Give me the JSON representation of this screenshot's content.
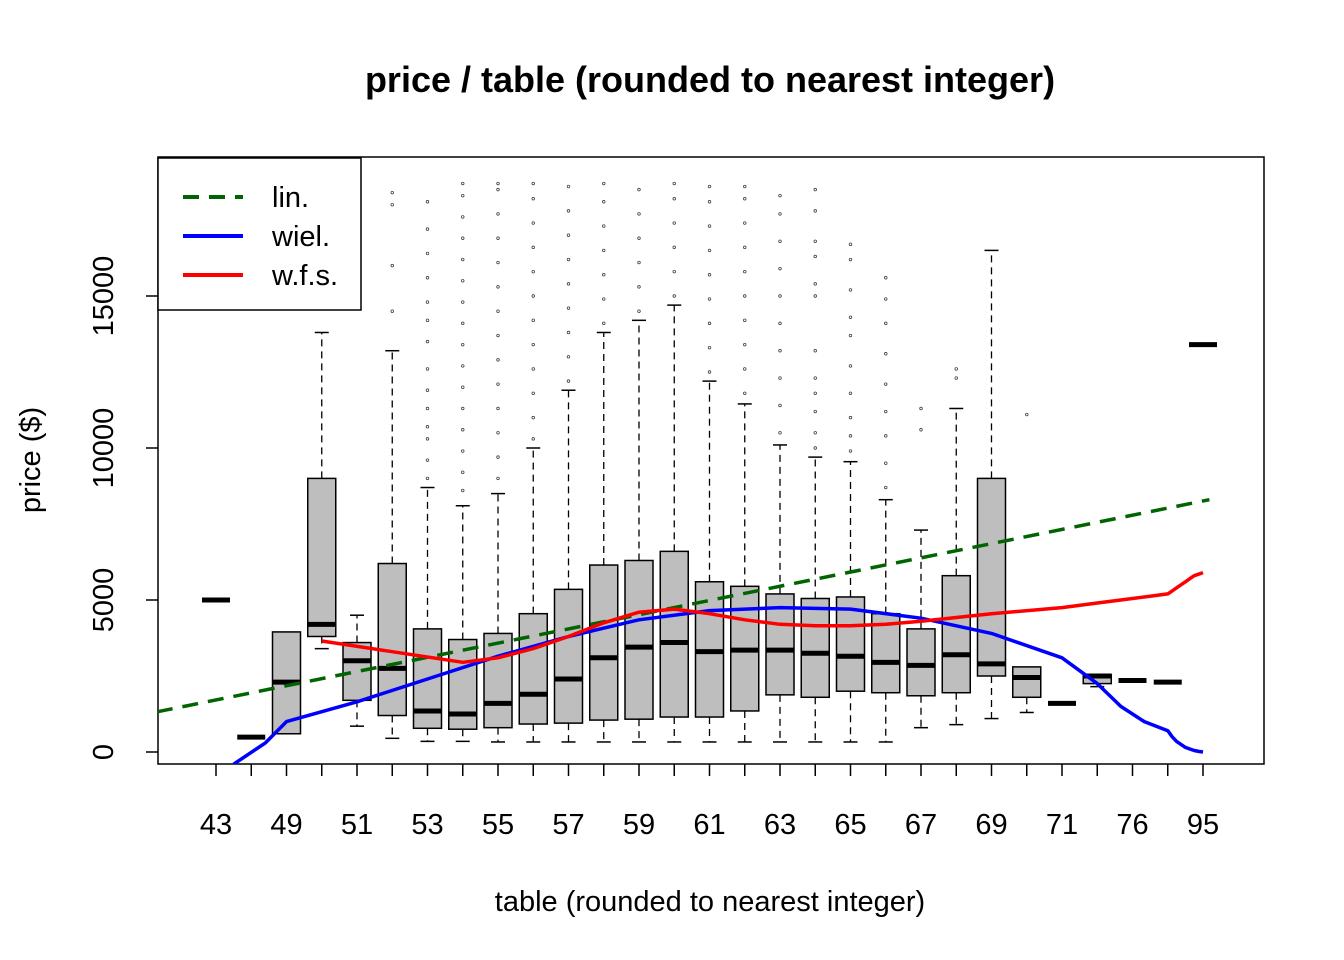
{
  "chart_data": {
    "type": "boxplot",
    "title": "price / table (rounded to nearest integer)",
    "xlabel": "table (rounded to nearest integer)",
    "ylabel": "price ($)",
    "ylim": [
      -400,
      19600
    ],
    "y_ticks": [
      0,
      5000,
      10000,
      15000
    ],
    "x_tick_labels": [
      "43",
      "49",
      "51",
      "53",
      "55",
      "57",
      "59",
      "61",
      "63",
      "65",
      "67",
      "69",
      "71",
      "76",
      "95"
    ],
    "categories": [
      "43",
      "44",
      "49",
      "50",
      "51",
      "52",
      "53",
      "54",
      "55",
      "56",
      "57",
      "58",
      "59",
      "60",
      "61",
      "62",
      "63",
      "64",
      "65",
      "66",
      "67",
      "68",
      "69",
      "70",
      "71",
      "73",
      "76",
      "79",
      "95"
    ],
    "boxes": [
      {
        "cat": "43",
        "min": 5000,
        "q1": 5000,
        "median": 5000,
        "q3": 5000,
        "max": 5000
      },
      {
        "cat": "44",
        "min": 490,
        "q1": 490,
        "median": 490,
        "q3": 490,
        "max": 490
      },
      {
        "cat": "49",
        "min": 600,
        "q1": 600,
        "median": 2300,
        "q3": 3950,
        "max": 3950
      },
      {
        "cat": "50",
        "min": 3400,
        "q1": 3800,
        "median": 4200,
        "q3": 9000,
        "max": 13800
      },
      {
        "cat": "51",
        "min": 850,
        "q1": 1700,
        "median": 3000,
        "q3": 3600,
        "max": 4500
      },
      {
        "cat": "52",
        "min": 450,
        "q1": 1200,
        "median": 2750,
        "q3": 6200,
        "max": 13200
      },
      {
        "cat": "53",
        "min": 350,
        "q1": 780,
        "median": 1350,
        "q3": 4050,
        "max": 8700
      },
      {
        "cat": "54",
        "min": 350,
        "q1": 750,
        "median": 1250,
        "q3": 3700,
        "max": 8100
      },
      {
        "cat": "55",
        "min": 330,
        "q1": 800,
        "median": 1600,
        "q3": 3900,
        "max": 8500
      },
      {
        "cat": "56",
        "min": 330,
        "q1": 920,
        "median": 1900,
        "q3": 4550,
        "max": 10000
      },
      {
        "cat": "57",
        "min": 330,
        "q1": 950,
        "median": 2400,
        "q3": 5350,
        "max": 11900
      },
      {
        "cat": "58",
        "min": 330,
        "q1": 1050,
        "median": 3100,
        "q3": 6150,
        "max": 13800
      },
      {
        "cat": "59",
        "min": 330,
        "q1": 1080,
        "median": 3450,
        "q3": 6300,
        "max": 14200
      },
      {
        "cat": "60",
        "min": 330,
        "q1": 1150,
        "median": 3600,
        "q3": 6600,
        "max": 14700
      },
      {
        "cat": "61",
        "min": 330,
        "q1": 1150,
        "median": 3300,
        "q3": 5600,
        "max": 12200
      },
      {
        "cat": "62",
        "min": 330,
        "q1": 1350,
        "median": 3350,
        "q3": 5450,
        "max": 11450
      },
      {
        "cat": "63",
        "min": 330,
        "q1": 1880,
        "median": 3350,
        "q3": 5200,
        "max": 10100
      },
      {
        "cat": "64",
        "min": 330,
        "q1": 1800,
        "median": 3250,
        "q3": 5050,
        "max": 9700
      },
      {
        "cat": "65",
        "min": 330,
        "q1": 2000,
        "median": 3150,
        "q3": 5100,
        "max": 9550
      },
      {
        "cat": "66",
        "min": 330,
        "q1": 1950,
        "median": 2950,
        "q3": 4550,
        "max": 8300
      },
      {
        "cat": "67",
        "min": 800,
        "q1": 1850,
        "median": 2850,
        "q3": 4050,
        "max": 7300
      },
      {
        "cat": "68",
        "min": 900,
        "q1": 1950,
        "median": 3200,
        "q3": 5800,
        "max": 11300
      },
      {
        "cat": "69",
        "min": 1100,
        "q1": 2500,
        "median": 2900,
        "q3": 9000,
        "max": 16500
      },
      {
        "cat": "70",
        "min": 1300,
        "q1": 1800,
        "median": 2450,
        "q3": 2800,
        "max": 2800
      },
      {
        "cat": "71",
        "min": 1600,
        "q1": 1600,
        "median": 1600,
        "q3": 1600,
        "max": 1600
      },
      {
        "cat": "73",
        "min": 2150,
        "q1": 2250,
        "median": 2500,
        "q3": 2550,
        "max": 2550
      },
      {
        "cat": "76",
        "min": 2350,
        "q1": 2350,
        "median": 2350,
        "q3": 2350,
        "max": 2350
      },
      {
        "cat": "79",
        "min": 2300,
        "q1": 2300,
        "median": 2300,
        "q3": 2300,
        "max": 2300
      },
      {
        "cat": "95",
        "min": 13400,
        "q1": 13400,
        "median": 13400,
        "q3": 13400,
        "max": 13400
      }
    ],
    "outliers": [
      {
        "cat": "52",
        "values": [
          14500,
          16000,
          18000,
          18400
        ]
      },
      {
        "cat": "53",
        "values": [
          9000,
          9600,
          10300,
          10700,
          11300,
          11900,
          12600,
          13500,
          14200,
          14800,
          15600,
          16400,
          17200,
          18100
        ]
      },
      {
        "cat": "54",
        "values": [
          8600,
          9200,
          9900,
          10600,
          11300,
          12000,
          12700,
          13400,
          14100,
          14800,
          15500,
          16200,
          16900,
          17600,
          18300,
          18700
        ]
      },
      {
        "cat": "55",
        "values": [
          9000,
          9700,
          10500,
          11300,
          12100,
          12900,
          13700,
          14500,
          15300,
          16100,
          16900,
          17700,
          18500,
          18700
        ]
      },
      {
        "cat": "56",
        "values": [
          10300,
          11000,
          11800,
          12600,
          13400,
          14200,
          15000,
          15800,
          16600,
          17400,
          18200,
          18700
        ]
      },
      {
        "cat": "57",
        "values": [
          12200,
          13000,
          13800,
          14600,
          15400,
          16200,
          17000,
          17800,
          18600
        ]
      },
      {
        "cat": "58",
        "values": [
          14100,
          14900,
          15700,
          16500,
          17300,
          18100,
          18700
        ]
      },
      {
        "cat": "59",
        "values": [
          14500,
          15300,
          16100,
          16900,
          17700,
          18500
        ]
      },
      {
        "cat": "60",
        "values": [
          15000,
          15800,
          16600,
          17400,
          18200,
          18700
        ]
      },
      {
        "cat": "61",
        "values": [
          12500,
          13300,
          14100,
          14900,
          15700,
          16500,
          17300,
          18100,
          18600
        ]
      },
      {
        "cat": "62",
        "values": [
          11800,
          12600,
          13400,
          14200,
          15000,
          15800,
          16600,
          17400,
          18200,
          18600
        ]
      },
      {
        "cat": "63",
        "values": [
          10500,
          11400,
          12300,
          13200,
          14100,
          15000,
          15900,
          16800,
          17700,
          18300
        ]
      },
      {
        "cat": "64",
        "values": [
          10000,
          10500,
          11200,
          11800,
          12300,
          13200,
          15000,
          15400,
          16300,
          16800,
          17800,
          18500
        ]
      },
      {
        "cat": "65",
        "values": [
          9900,
          10400,
          11000,
          11800,
          12700,
          13700,
          14300,
          15200,
          16200,
          16700
        ]
      },
      {
        "cat": "66",
        "values": [
          8700,
          9500,
          10400,
          11200,
          12100,
          13100,
          14100,
          14900,
          15600
        ]
      },
      {
        "cat": "67",
        "values": [
          10600,
          11300
        ]
      },
      {
        "cat": "68",
        "values": [
          12300,
          12600
        ]
      },
      {
        "cat": "70",
        "values": [
          11100
        ]
      }
    ],
    "series": [
      {
        "name": "lin.",
        "style": "dashed",
        "color": "#006400",
        "x": [
          40.6,
          97.9
        ],
        "y": [
          1150,
          8300
        ]
      },
      {
        "name": "wiel.",
        "style": "solid",
        "color": "#0000ff",
        "x": [
          43.5,
          46,
          49,
          51,
          53,
          55,
          57,
          59,
          61,
          63,
          65,
          67,
          69,
          71,
          73,
          75,
          77,
          79,
          81,
          83,
          85,
          87,
          89,
          91,
          93,
          95
        ],
        "y": [
          -400,
          300,
          1000,
          1650,
          2400,
          3150,
          3800,
          4350,
          4650,
          4750,
          4700,
          4400,
          3900,
          3100,
          2250,
          1500,
          1000,
          700,
          500,
          350,
          250,
          150,
          100,
          50,
          20,
          0
        ]
      },
      {
        "name": "w.f.s.",
        "style": "solid",
        "color": "#ff0000",
        "x": [
          50,
          52,
          54,
          55,
          56,
          57,
          58,
          59,
          60,
          61,
          62,
          63,
          64,
          65,
          66,
          67,
          69,
          71,
          73,
          75,
          77,
          79,
          81,
          83,
          85,
          87,
          89,
          91,
          93,
          95
        ],
        "y": [
          3650,
          3300,
          2950,
          3100,
          3400,
          3800,
          4250,
          4600,
          4700,
          4550,
          4350,
          4200,
          4150,
          4150,
          4200,
          4300,
          4550,
          4750,
          4900,
          5000,
          5100,
          5200,
          5300,
          5400,
          5500,
          5600,
          5700,
          5800,
          5850,
          5900
        ]
      }
    ],
    "legend": {
      "position": "top-left",
      "entries": [
        {
          "label": "lin.",
          "color": "#006400",
          "style": "dashed"
        },
        {
          "label": "wiel.",
          "color": "#0000ff",
          "style": "solid"
        },
        {
          "label": "w.f.s.",
          "color": "#ff0000",
          "style": "solid"
        }
      ]
    },
    "colors": {
      "box_fill": "#bebebe",
      "box_stroke": "#000000"
    }
  }
}
